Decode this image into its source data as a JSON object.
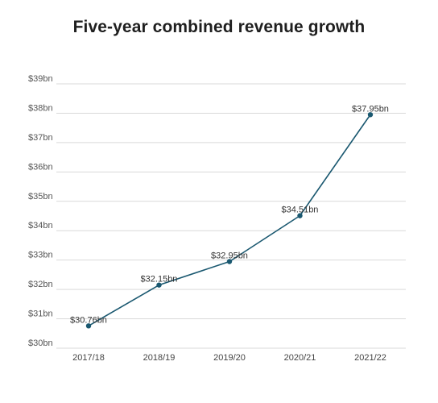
{
  "chart_data": {
    "type": "line",
    "title": "Five-year combined revenue growth",
    "categories": [
      "2017/18",
      "2018/19",
      "2019/20",
      "2020/21",
      "2021/22"
    ],
    "series": [
      {
        "values": [
          30.76,
          32.15,
          32.95,
          34.51,
          37.95
        ],
        "labels": [
          "$30.76bn",
          "$32.15bn",
          "$32.95bn",
          "$34.51bn",
          "$37.95bn"
        ],
        "color": "#1a5870"
      }
    ],
    "y_ticks": [
      {
        "value": 30,
        "label": "$30bn"
      },
      {
        "value": 31,
        "label": "$31bn"
      },
      {
        "value": 32,
        "label": "$32bn"
      },
      {
        "value": 33,
        "label": "$33bn"
      },
      {
        "value": 34,
        "label": "$34bn"
      },
      {
        "value": 35,
        "label": "$35bn"
      },
      {
        "value": 36,
        "label": "$36bn"
      },
      {
        "value": 37,
        "label": "$37bn"
      },
      {
        "value": 38,
        "label": "$38bn"
      },
      {
        "value": 39,
        "label": "$39bn"
      }
    ],
    "ylim": [
      30,
      39
    ],
    "grid": true,
    "legend": "none"
  }
}
